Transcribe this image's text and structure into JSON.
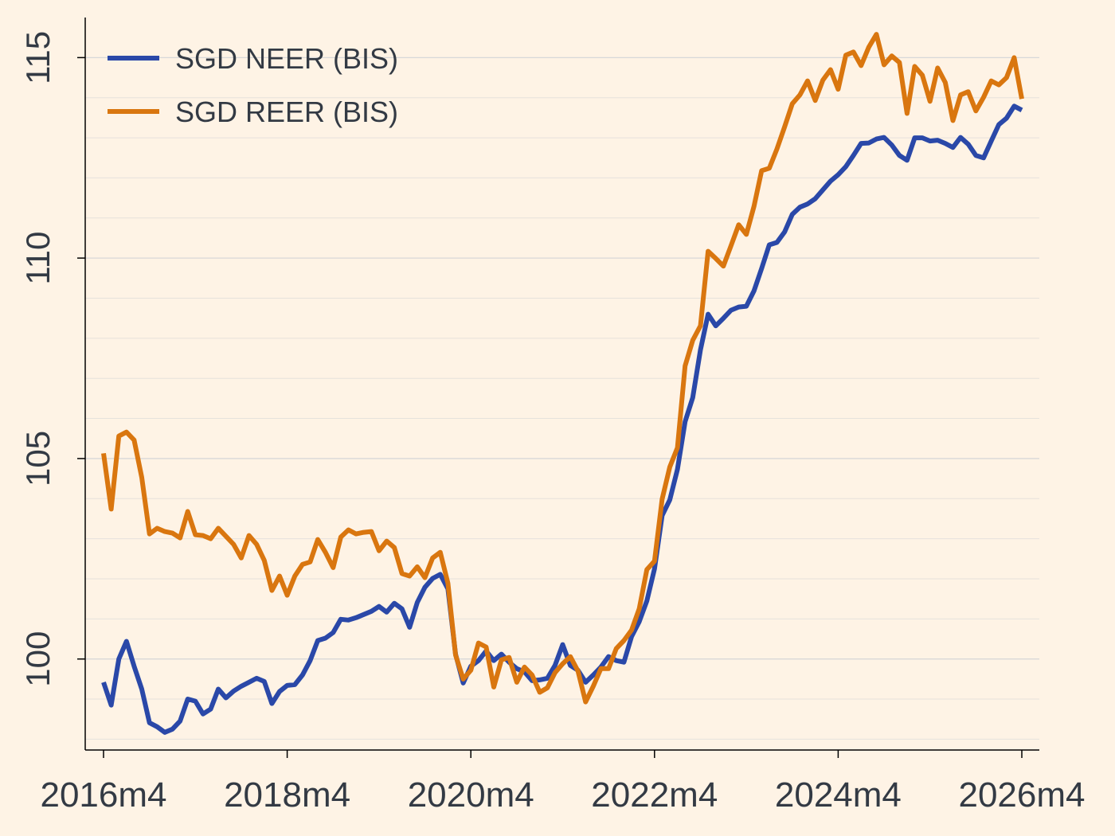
{
  "chart_data": {
    "type": "line",
    "x": [
      "2016m4",
      "2016m5",
      "2016m6",
      "2016m7",
      "2016m8",
      "2016m9",
      "2016m10",
      "2016m11",
      "2016m12",
      "2017m1",
      "2017m2",
      "2017m3",
      "2017m4",
      "2017m5",
      "2017m6",
      "2017m7",
      "2017m8",
      "2017m9",
      "2017m10",
      "2017m11",
      "2017m12",
      "2018m1",
      "2018m2",
      "2018m3",
      "2018m4",
      "2018m5",
      "2018m6",
      "2018m7",
      "2018m8",
      "2018m9",
      "2018m10",
      "2018m11",
      "2018m12",
      "2019m1",
      "2019m2",
      "2019m3",
      "2019m4",
      "2019m5",
      "2019m6",
      "2019m7",
      "2019m8",
      "2019m9",
      "2019m10",
      "2019m11",
      "2019m12",
      "2020m1",
      "2020m2",
      "2020m3",
      "2020m4",
      "2020m5",
      "2020m6",
      "2020m7",
      "2020m8",
      "2020m9",
      "2020m10",
      "2020m11",
      "2020m12",
      "2021m1",
      "2021m2",
      "2021m3",
      "2021m4",
      "2021m5",
      "2021m6",
      "2021m7",
      "2021m8",
      "2021m9",
      "2021m10",
      "2021m11",
      "2021m12",
      "2022m1",
      "2022m2",
      "2022m3",
      "2022m4",
      "2022m5",
      "2022m6",
      "2022m7",
      "2022m8",
      "2022m9",
      "2022m10",
      "2022m11",
      "2022m12",
      "2023m1",
      "2023m2",
      "2023m3",
      "2023m4",
      "2023m5",
      "2023m6",
      "2023m7",
      "2023m8",
      "2023m9",
      "2023m10",
      "2023m11",
      "2023m12",
      "2024m1",
      "2024m2",
      "2024m3",
      "2024m4",
      "2024m5",
      "2024m6",
      "2024m7",
      "2024m8",
      "2024m9",
      "2024m10",
      "2024m11",
      "2024m12",
      "2025m1",
      "2025m2",
      "2025m3",
      "2025m4",
      "2025m5",
      "2025m6",
      "2025m7",
      "2025m8",
      "2025m9",
      "2025m10",
      "2025m11",
      "2025m12",
      "2026m1",
      "2026m2",
      "2026m3",
      "2026m4"
    ],
    "series": [
      {
        "name": "SGD NEER (BIS)",
        "color": "#2a48a8",
        "values": [
          99.42,
          98.85,
          100.0,
          100.44,
          99.82,
          99.25,
          98.41,
          98.31,
          98.17,
          98.25,
          98.45,
          99.0,
          98.95,
          98.63,
          98.75,
          99.25,
          99.03,
          99.2,
          99.32,
          99.42,
          99.52,
          99.44,
          98.89,
          99.19,
          99.34,
          99.36,
          99.6,
          99.96,
          100.46,
          100.52,
          100.66,
          100.99,
          100.97,
          101.03,
          101.11,
          101.19,
          101.31,
          101.17,
          101.39,
          101.25,
          100.79,
          101.41,
          101.79,
          102.01,
          102.11,
          101.75,
          100.12,
          99.4,
          99.82,
          99.96,
          100.2,
          99.96,
          100.12,
          99.92,
          99.76,
          99.68,
          99.46,
          99.48,
          99.52,
          99.84,
          100.36,
          99.84,
          99.72,
          99.42,
          99.6,
          99.8,
          100.06,
          99.96,
          99.92,
          100.56,
          100.93,
          101.45,
          102.25,
          103.58,
          103.97,
          104.73,
          105.92,
          106.52,
          107.71,
          108.6,
          108.31,
          108.5,
          108.7,
          108.78,
          108.8,
          109.18,
          109.74,
          110.33,
          110.39,
          110.65,
          111.09,
          111.27,
          111.35,
          111.48,
          111.7,
          111.92,
          112.08,
          112.28,
          112.56,
          112.86,
          112.87,
          112.97,
          113.01,
          112.82,
          112.56,
          112.44,
          113.0,
          113.0,
          112.92,
          112.94,
          112.86,
          112.76,
          113.01,
          112.84,
          112.56,
          112.5,
          112.92,
          113.33,
          113.49,
          113.79,
          113.69
        ]
      },
      {
        "name": "SGD REER (BIS)",
        "color": "#d9760f",
        "values": [
          105.13,
          103.74,
          105.56,
          105.66,
          105.46,
          104.53,
          103.12,
          103.26,
          103.18,
          103.14,
          103.02,
          103.68,
          103.1,
          103.08,
          103.0,
          103.26,
          103.06,
          102.86,
          102.52,
          103.08,
          102.86,
          102.46,
          101.71,
          102.07,
          101.59,
          102.07,
          102.36,
          102.42,
          102.98,
          102.66,
          102.28,
          103.04,
          103.22,
          103.12,
          103.16,
          103.18,
          102.7,
          102.94,
          102.78,
          102.13,
          102.07,
          102.3,
          102.03,
          102.52,
          102.66,
          101.89,
          100.1,
          99.5,
          99.72,
          100.4,
          100.3,
          99.3,
          99.98,
          100.04,
          99.42,
          99.8,
          99.6,
          99.17,
          99.28,
          99.66,
          99.88,
          100.06,
          99.7,
          98.93,
          99.32,
          99.76,
          99.76,
          100.26,
          100.46,
          100.72,
          101.25,
          102.23,
          102.44,
          103.99,
          104.79,
          105.27,
          107.31,
          107.95,
          108.31,
          110.17,
          109.99,
          109.8,
          110.31,
          110.83,
          110.59,
          111.29,
          112.18,
          112.24,
          112.72,
          113.27,
          113.85,
          114.07,
          114.42,
          113.93,
          114.44,
          114.7,
          114.21,
          115.06,
          115.14,
          114.8,
          115.26,
          115.58,
          114.82,
          115.04,
          114.88,
          113.61,
          114.78,
          114.56,
          113.91,
          114.74,
          114.38,
          113.43,
          114.07,
          114.15,
          113.67,
          114.01,
          114.42,
          114.32,
          114.5,
          115.0,
          113.97
        ]
      }
    ],
    "xticks": [
      "2016m4",
      "2018m4",
      "2020m4",
      "2022m4",
      "2024m4",
      "2026m4"
    ],
    "ylim": [
      97.73,
      116.0
    ],
    "yticks": [
      100,
      105,
      110,
      115
    ],
    "y_minor_grid": [
      98,
      99,
      101,
      102,
      103,
      104,
      106,
      107,
      108,
      109,
      111,
      112,
      113,
      114
    ],
    "grid": true,
    "legend": "top-left"
  }
}
